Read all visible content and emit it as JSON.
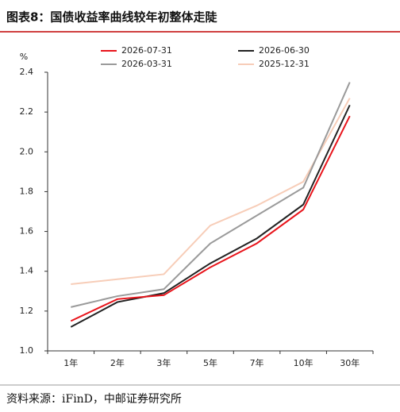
{
  "chart_data": {
    "type": "line",
    "title": "图表8：国债收益率曲线较年初整体走陡",
    "y_label": "%",
    "source": "资料来源：iFinD，中邮证券研究所",
    "categories": [
      "1年",
      "2年",
      "3年",
      "5年",
      "7年",
      "10年",
      "30年"
    ],
    "series": [
      {
        "name": "2026-07-31",
        "color": "#e8141b",
        "values": [
          1.15,
          1.26,
          1.28,
          1.42,
          1.54,
          1.71,
          2.18
        ]
      },
      {
        "name": "2026-06-30",
        "color": "#222222",
        "values": [
          1.12,
          1.245,
          1.29,
          1.44,
          1.565,
          1.735,
          2.235
        ]
      },
      {
        "name": "2026-03-31",
        "color": "#9a9a9a",
        "values": [
          1.22,
          1.275,
          1.31,
          1.54,
          1.68,
          1.82,
          2.35
        ]
      },
      {
        "name": "2025-12-31",
        "color": "#f7cdb8",
        "values": [
          1.335,
          1.36,
          1.385,
          1.63,
          1.73,
          1.85,
          2.27
        ]
      }
    ],
    "ylim": [
      1.0,
      2.4
    ],
    "yticks": [
      {
        "value": 1.0,
        "label": "1.0"
      },
      1.2,
      1.4,
      1.6,
      1.8,
      {
        "value": 2.0,
        "label": "2.0"
      },
      2.2,
      2.4
    ],
    "grid": false,
    "legend": "top"
  }
}
